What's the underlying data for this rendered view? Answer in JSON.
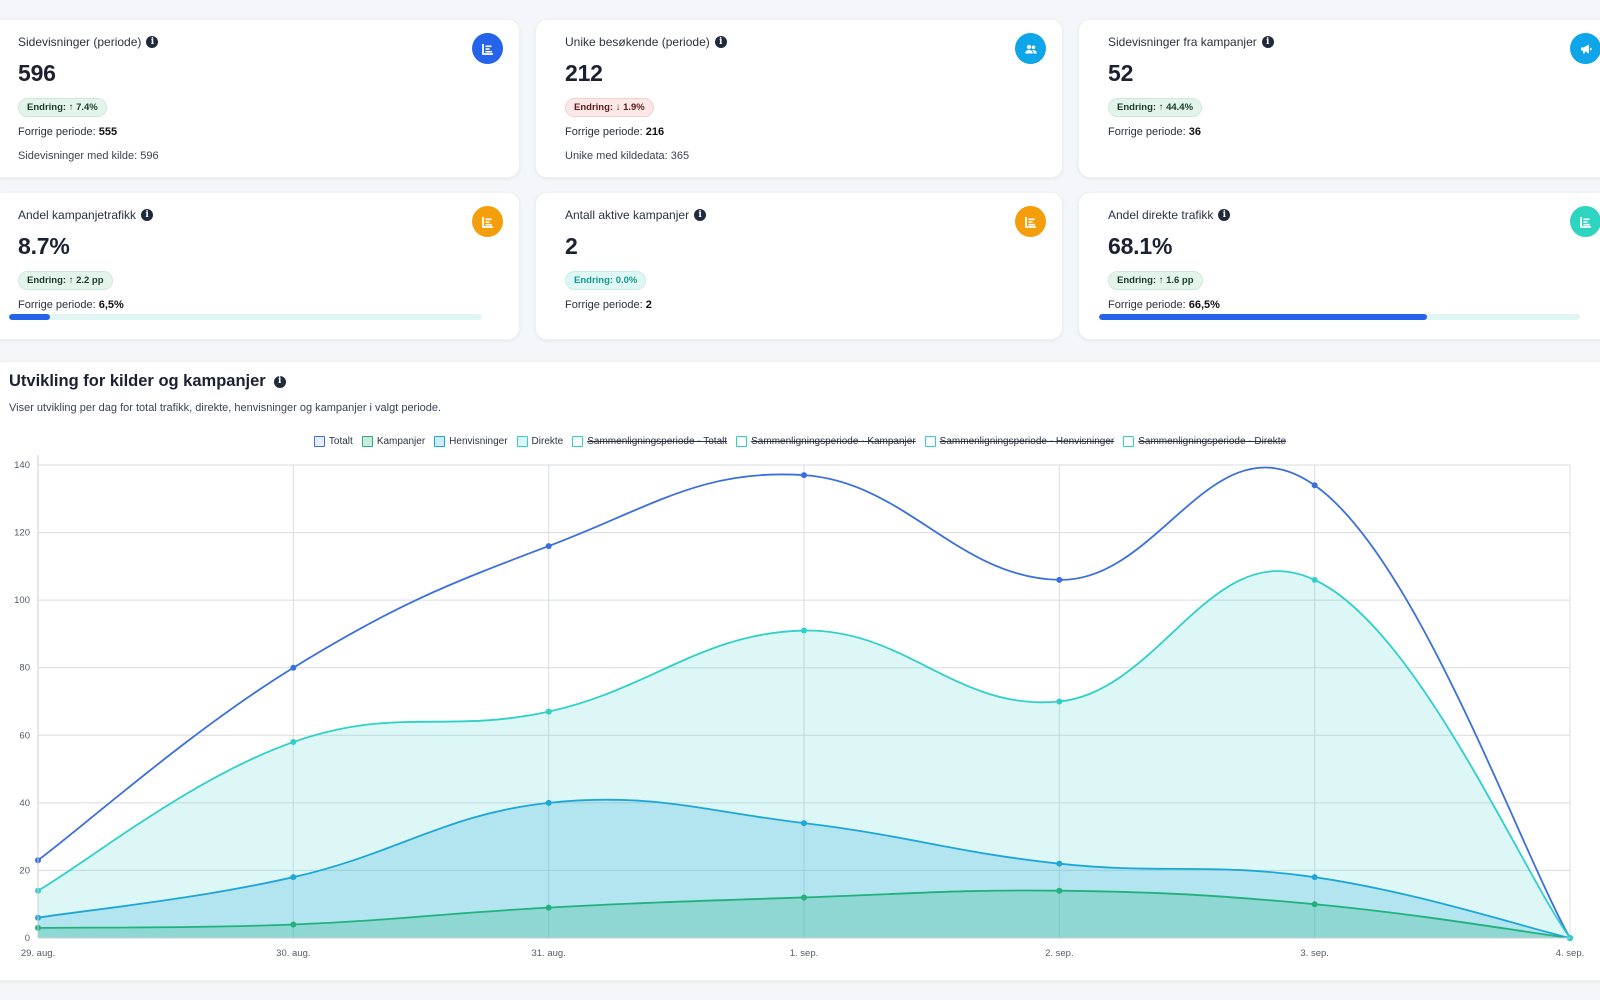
{
  "kpis": [
    {
      "label": "Sidevisninger (periode)",
      "value": "596",
      "badge": "Endring: ↑ 7.4%",
      "badge_type": "up",
      "prev_label": "Forrige periode:",
      "prev_value": "555",
      "extra": "Sidevisninger med kilde: 596",
      "icon": "bar-chart-icon",
      "icon_color": "#2563eb"
    },
    {
      "label": "Unike besøkende (periode)",
      "value": "212",
      "badge": "Endring: ↓ 1.9%",
      "badge_type": "down",
      "prev_label": "Forrige periode:",
      "prev_value": "216",
      "extra": "Unike med kildedata: 365",
      "icon": "users-icon",
      "icon_color": "#0ea5e9"
    },
    {
      "label": "Sidevisninger fra kampanjer",
      "value": "52",
      "badge": "Endring: ↑ 44.4%",
      "badge_type": "up",
      "prev_label": "Forrige periode:",
      "prev_value": "36",
      "extra": "",
      "icon": "megaphone-icon",
      "icon_color": "#0ea5e9"
    },
    {
      "label": "Andel kampanjetrafikk",
      "value": "8.7%",
      "badge": "Endring: ↑ 2.2 pp",
      "badge_type": "up",
      "prev_label": "Forrige periode:",
      "prev_value": "6,5%",
      "extra": "",
      "icon": "bar-chart-icon",
      "icon_color": "#f59e0b",
      "progress": 0.087
    },
    {
      "label": "Antall aktive kampanjer",
      "value": "2",
      "badge": "Endring: 0.0%",
      "badge_type": "neutral",
      "prev_label": "Forrige periode:",
      "prev_value": "2",
      "extra": "",
      "icon": "bar-chart-icon",
      "icon_color": "#f59e0b"
    },
    {
      "label": "Andel direkte trafikk",
      "value": "68.1%",
      "badge": "Endring: ↑ 1.6 pp",
      "badge_type": "up",
      "prev_label": "Forrige periode:",
      "prev_value": "66,5%",
      "extra": "",
      "icon": "bar-chart-icon",
      "icon_color": "#2dd4bf",
      "progress": 0.681
    }
  ],
  "chart_section": {
    "title": "Utvikling for kilder og kampanjer",
    "subtitle": "Viser utvikling per dag for total trafikk, direkte, henvisninger og kampanjer i valgt periode."
  },
  "chart_data": {
    "type": "line",
    "x": [
      "29. aug.",
      "30. aug.",
      "31. aug.",
      "1. sep.",
      "2. sep.",
      "3. sep.",
      "4. sep."
    ],
    "ylim": [
      0,
      140
    ],
    "yticks": [
      0,
      20,
      40,
      60,
      80,
      100,
      120,
      140
    ],
    "grid": true,
    "legend_position": "top",
    "series": [
      {
        "name": "Totalt",
        "values": [
          23,
          80,
          116,
          137,
          106,
          134,
          0
        ],
        "color": "#3b6fe0",
        "fill": false,
        "hidden": false
      },
      {
        "name": "Kampanjer",
        "values": [
          3,
          4,
          9,
          12,
          14,
          10,
          0
        ],
        "color": "#22b07d",
        "fill": true,
        "fill_color": "rgba(34,176,125,0.25)",
        "hidden": false
      },
      {
        "name": "Henvisninger",
        "values": [
          6,
          18,
          40,
          34,
          22,
          18,
          0
        ],
        "color": "#1ea7d6",
        "fill": true,
        "fill_color": "rgba(30,167,214,0.22)",
        "hidden": false
      },
      {
        "name": "Direkte",
        "values": [
          14,
          58,
          67,
          91,
          70,
          106,
          0
        ],
        "color": "#2fd0c8",
        "fill": true,
        "fill_color": "rgba(47,208,200,0.17)",
        "hidden": false
      },
      {
        "name": "Sammenligningsperiode - Totalt",
        "color": "#2fd0c8",
        "hidden": true
      },
      {
        "name": "Sammenligningsperiode - Kampanjer",
        "color": "#2fd0c8",
        "hidden": true
      },
      {
        "name": "Sammenligningsperiode - Henvisninger",
        "color": "#2fd0c8",
        "hidden": true
      },
      {
        "name": "Sammenligningsperiode - Direkte",
        "color": "#2fd0c8",
        "hidden": true
      }
    ]
  }
}
